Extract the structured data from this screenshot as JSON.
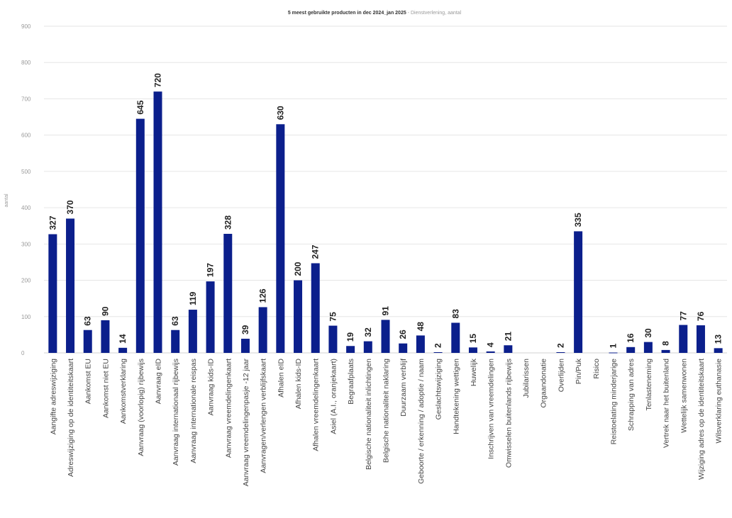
{
  "chart_data": {
    "type": "bar",
    "title": "5 meest gebruikte producten in dec 2024_jan 2025",
    "subtitle": " - Dienstverlening, aantal",
    "xlabel": "",
    "ylabel": "aantal",
    "ylim": [
      0,
      900
    ],
    "yticks": [
      0,
      100,
      200,
      300,
      400,
      500,
      600,
      700,
      800,
      900
    ],
    "grid": true,
    "bar_color": "#0b1f8c",
    "categories": [
      "Aangifte adreswijziging",
      "Adreswijziging op de identiteitskaart",
      "Aankomst EU",
      "Aankomst niet EU",
      "Aankomstverklaring",
      "Aanvraag (voorlopig) rijbewijs",
      "Aanvraag eID",
      "Aanvraag internationaal rijbewijs",
      "Aanvraag internationale reispas",
      "Aanvraag kids-ID",
      "Aanvraag vreemdelingenkaart",
      "Aanvraag vreemdelingenpasje -12 jaar",
      "Aanvragen/verlengen verblijfskaart",
      "Afhalen eID",
      "Afhalen kids-ID",
      "Afhalen vreemdelingenkaart",
      "Asiel (A.I., oranjekaart)",
      "Begraafplaats",
      "Belgische nationaliteit inlichtingen",
      "Belgische nationaliteit naklaring",
      "Duurzaam verblijf",
      "Geboorte / erkenning / adoptie / naam",
      "Geslachtswijziging",
      "Handtekening wettigen",
      "Huwelijk",
      "Inschrijven van vreemdelingen",
      "Omwisselen buitenlands rijbewijs",
      "Jubilarissen",
      "Orgaandonatie",
      "Overlijden",
      "Pin/Puk",
      "Risico",
      "Reistoelating minderjarige",
      "Schrapping van adres",
      "Tenlasteneming",
      "Vertrek naar het buitenland",
      "Wettelijk samenwonen",
      "Wijziging adres op de identiteitskaart",
      "Wilsverklaring euthanasie"
    ],
    "values": [
      327,
      370,
      63,
      90,
      14,
      645,
      720,
      63,
      119,
      197,
      328,
      39,
      126,
      630,
      200,
      247,
      75,
      19,
      32,
      91,
      26,
      48,
      2,
      83,
      15,
      4,
      21,
      0,
      0,
      2,
      335,
      0,
      1,
      16,
      30,
      8,
      77,
      76,
      13
    ],
    "data_labels": [
      "327",
      "370",
      "63",
      "90",
      "14",
      "645",
      "720",
      "63",
      "119",
      "197",
      "328",
      "39",
      "126",
      "630",
      "200",
      "247",
      "75",
      "19",
      "32",
      "91",
      "26",
      "48",
      "2",
      "83",
      "15",
      "4",
      "21",
      "",
      "",
      "2",
      "335",
      "",
      "1",
      "16",
      "30",
      "8",
      "77",
      "76",
      "13"
    ]
  }
}
